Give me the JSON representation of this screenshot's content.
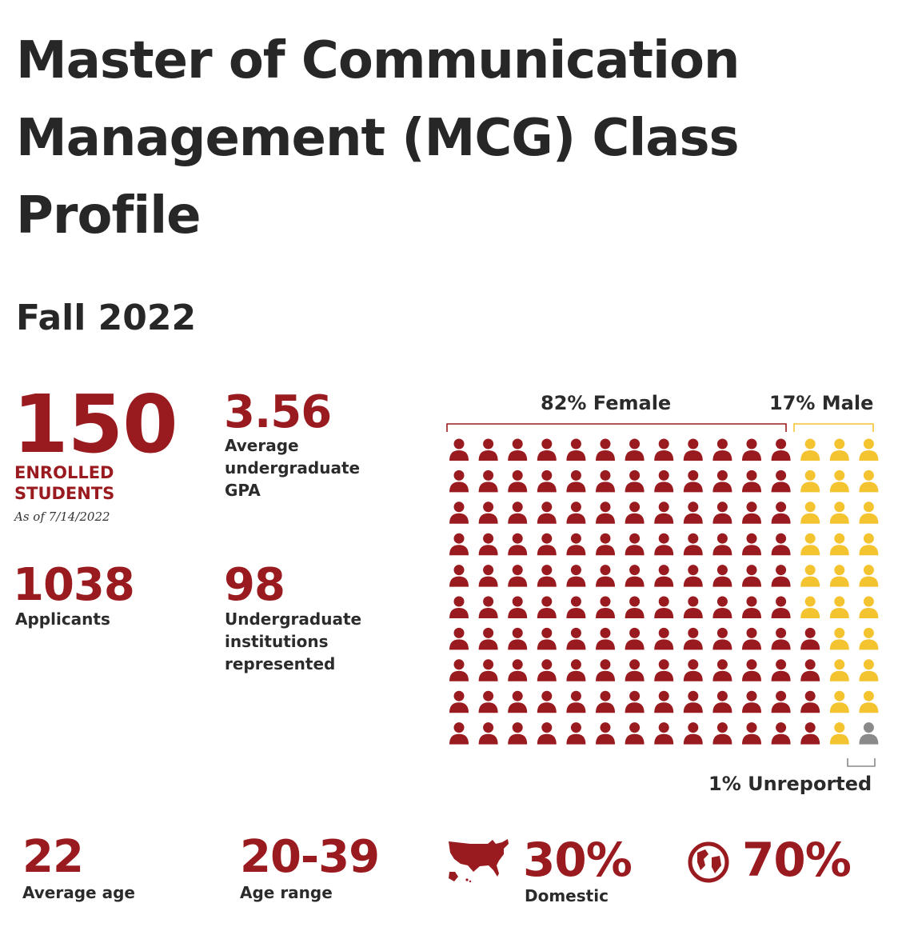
{
  "header": {
    "title": "Master of Communication Management (MCG) Class Profile",
    "term": "Fall 2022"
  },
  "stats": {
    "enrolled": {
      "value": "150",
      "label_line1": "ENROLLED",
      "label_line2": "STUDENTS",
      "note": "As of 7/14/2022"
    },
    "gpa": {
      "value": "3.56",
      "label_line1": "Average",
      "label_line2": "undergraduate",
      "label_line3": "GPA"
    },
    "applicants": {
      "value": "1038",
      "label": "Applicants"
    },
    "institutions": {
      "value": "98",
      "label_line1": "Undergraduate",
      "label_line2": "institutions",
      "label_line3": "represented"
    },
    "avg_age": {
      "value": "22",
      "label": "Average age"
    },
    "age_range": {
      "value": "20-39",
      "label": "Age range"
    },
    "domestic": {
      "value": "30%",
      "label": "Domestic",
      "icon": "usa-map-icon"
    },
    "international": {
      "value": "70%",
      "icon": "globe-icon"
    }
  },
  "chart_data": {
    "type": "pictogram",
    "rows": 10,
    "columns": 15,
    "total_icons": 150,
    "series": [
      {
        "name": "82% Female",
        "percent": 82,
        "icons": 124,
        "color": "#9a1b1f"
      },
      {
        "name": "17% Male",
        "percent": 17,
        "icons": 25,
        "color": "#f4c430"
      },
      {
        "name": "1% Unreported",
        "percent": 1,
        "icons": 1,
        "color": "#8a8a8a"
      }
    ],
    "bracket_color_female": "#9a1b1f",
    "bracket_color_male": "#f4c430",
    "bracket_color_unreported": "#8a8a8a"
  }
}
